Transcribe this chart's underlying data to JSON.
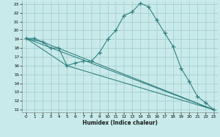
{
  "title": "",
  "xlabel": "Humidex (Indice chaleur)",
  "bg_color": "#c8eaea",
  "grid_color": "#aad0d0",
  "line_color": "#2d7d7d",
  "xlim": [
    -0.5,
    23.5
  ],
  "ylim": [
    10.7,
    23.3
  ],
  "xticks": [
    0,
    1,
    2,
    3,
    4,
    5,
    6,
    7,
    8,
    9,
    10,
    11,
    12,
    13,
    14,
    15,
    16,
    17,
    18,
    19,
    20,
    21,
    22,
    23
  ],
  "yticks": [
    11,
    12,
    13,
    14,
    15,
    16,
    17,
    18,
    19,
    20,
    21,
    22,
    23
  ],
  "line1_x": [
    0,
    1,
    2,
    3,
    4,
    5,
    6,
    7,
    8,
    9,
    10,
    11,
    12,
    13,
    14,
    15,
    16,
    17,
    18,
    19,
    20,
    21,
    22,
    23
  ],
  "line1_y": [
    19.1,
    19.1,
    18.7,
    18.0,
    18.0,
    16.0,
    16.3,
    16.5,
    16.5,
    17.5,
    19.0,
    20.0,
    21.7,
    22.1,
    23.1,
    22.7,
    21.2,
    19.7,
    18.2,
    15.7,
    14.2,
    12.5,
    11.8,
    11.0
  ],
  "line2_x": [
    0,
    2,
    23
  ],
  "line2_y": [
    19.1,
    18.7,
    11.0
  ],
  "line3_x": [
    0,
    5,
    23
  ],
  "line3_y": [
    19.1,
    16.0,
    11.0
  ],
  "line4_x": [
    0,
    23
  ],
  "line4_y": [
    19.1,
    11.0
  ]
}
